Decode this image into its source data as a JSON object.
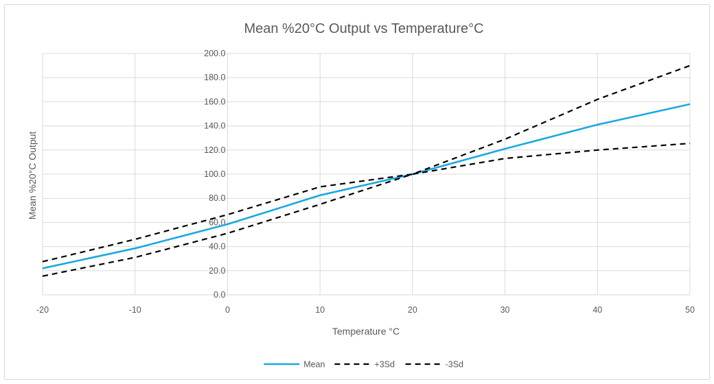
{
  "chart_data": {
    "type": "scatter",
    "title": "Mean %20°C Output vs Temperature°C",
    "xlabel": "Temperature °C",
    "ylabel": "Mean %20°C Output",
    "xlim": [
      -20,
      50
    ],
    "ylim": [
      0,
      200
    ],
    "x_ticks": [
      -20,
      -10,
      0,
      10,
      20,
      30,
      40,
      50
    ],
    "y_ticks": [
      "0.0",
      "20.0",
      "40.0",
      "60.0",
      "80.0",
      "100.0",
      "120.0",
      "140.0",
      "160.0",
      "180.0",
      "200.0"
    ],
    "grid": true,
    "legend_position": "bottom",
    "x": [
      -20,
      -10,
      0,
      10,
      20,
      30,
      40,
      50
    ],
    "series": [
      {
        "name": "Mean",
        "values": [
          22,
          38.5,
          58.5,
          82.5,
          100,
          121,
          141,
          158
        ],
        "color": "#1ba8e0",
        "style": "solid"
      },
      {
        "name": "+3Sd",
        "values": [
          27.5,
          46,
          66.5,
          89.5,
          100,
          129,
          162,
          190
        ],
        "color": "#000000",
        "style": "dashed"
      },
      {
        "name": "-3Sd",
        "values": [
          15.5,
          31,
          51,
          75,
          100,
          113,
          120,
          125.5
        ],
        "color": "#000000",
        "style": "dashed"
      }
    ]
  }
}
